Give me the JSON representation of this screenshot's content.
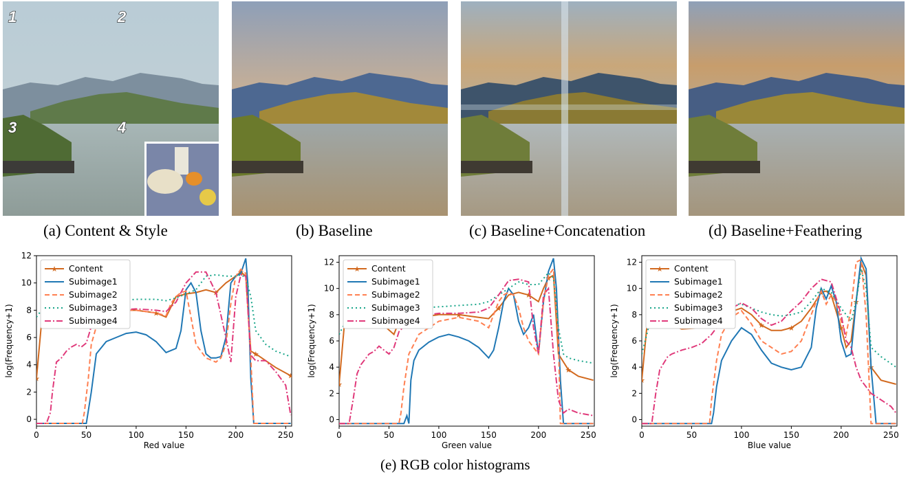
{
  "panels": [
    {
      "id": "a",
      "caption": "(a) Content & Style",
      "region_labels": [
        "1",
        "2",
        "3",
        "4"
      ]
    },
    {
      "id": "b",
      "caption": "(b) Baseline"
    },
    {
      "id": "c",
      "caption": "(c) Baseline+Concatenation"
    },
    {
      "id": "d",
      "caption": "(d) Baseline+Feathering"
    }
  ],
  "figure_caption": "(e) RGB color histograms",
  "colors": {
    "Content": "#d2691e",
    "Subimage1": "#1f77b4",
    "Subimage2": "#ff7f50",
    "Subimage3": "#17a589",
    "Subimage4": "#e0397a"
  },
  "chart_data": [
    {
      "type": "line",
      "xlabel": "Red value",
      "ylabel": "log(Frequency+1)",
      "xlim": [
        0,
        256
      ],
      "ylim": [
        -0.5,
        12
      ],
      "xticks": [
        0,
        50,
        100,
        150,
        200,
        250
      ],
      "yticks": [
        0,
        2,
        4,
        6,
        8,
        10,
        12
      ],
      "legend_position": "top-left",
      "series": [
        {
          "name": "Content",
          "x": [
            0,
            5,
            10,
            20,
            40,
            50,
            60,
            80,
            100,
            120,
            130,
            140,
            150,
            160,
            170,
            180,
            190,
            200,
            205,
            210,
            215,
            220,
            230,
            240,
            255
          ],
          "y": [
            3,
            7,
            8,
            8.2,
            8,
            7,
            7.8,
            8,
            8,
            7.8,
            7.5,
            9,
            9.2,
            9.3,
            9.5,
            9.3,
            10,
            10.5,
            10.8,
            10.5,
            5,
            4.8,
            4.3,
            3.8,
            3.2
          ]
        },
        {
          "name": "Subimage1",
          "x": [
            0,
            10,
            20,
            30,
            40,
            48,
            50,
            55,
            60,
            70,
            80,
            90,
            100,
            110,
            120,
            130,
            140,
            145,
            150,
            155,
            160,
            165,
            170,
            175,
            180,
            185,
            190,
            195,
            200,
            205,
            210,
            212,
            215,
            218,
            220,
            230,
            255
          ],
          "y": [
            -0.3,
            -0.3,
            -0.3,
            -0.3,
            -0.3,
            -0.3,
            -0.3,
            2,
            4.8,
            5.7,
            6,
            6.3,
            6.4,
            6.2,
            5.7,
            4.9,
            5.2,
            6.5,
            9.5,
            10,
            9.3,
            6.5,
            4.8,
            4.5,
            4.5,
            4.6,
            6,
            10,
            10.5,
            10.7,
            11.8,
            10,
            3,
            -0.3,
            -0.3,
            -0.3,
            -0.3
          ]
        },
        {
          "name": "Subimage2",
          "x": [
            0,
            10,
            20,
            30,
            40,
            46,
            48,
            52,
            55,
            60,
            70,
            80,
            100,
            120,
            130,
            135,
            140,
            145,
            150,
            155,
            160,
            170,
            180,
            185,
            190,
            195,
            200,
            205,
            210,
            215,
            218,
            220,
            255
          ],
          "y": [
            -0.3,
            -0.3,
            -0.3,
            -0.3,
            -0.3,
            -0.3,
            0.5,
            3,
            5.5,
            6.8,
            7.5,
            8,
            8,
            7.8,
            7.6,
            8.5,
            9,
            9.3,
            9.4,
            7.5,
            5.5,
            4.5,
            4.2,
            4.5,
            5.5,
            8.5,
            10.5,
            11,
            10.7,
            4.5,
            -0.3,
            -0.3,
            -0.3
          ]
        },
        {
          "name": "Subimage3",
          "x": [
            0,
            10,
            20,
            40,
            60,
            80,
            100,
            120,
            130,
            140,
            150,
            160,
            170,
            180,
            190,
            200,
            205,
            210,
            215,
            220,
            230,
            240,
            255
          ],
          "y": [
            7.5,
            8.5,
            8.6,
            8.5,
            8.6,
            8.7,
            8.8,
            8.8,
            8.7,
            8.9,
            9.2,
            9.5,
            10.5,
            10.6,
            10.5,
            10.5,
            10.6,
            10.4,
            9,
            6.5,
            5.5,
            5,
            4.6
          ]
        },
        {
          "name": "Subimage4",
          "x": [
            0,
            10,
            14,
            16,
            20,
            25,
            30,
            35,
            40,
            45,
            50,
            55,
            60,
            70,
            80,
            100,
            120,
            130,
            140,
            150,
            160,
            170,
            180,
            190,
            195,
            200,
            205,
            210,
            215,
            220,
            230,
            240,
            250,
            255
          ],
          "y": [
            -0.3,
            -0.3,
            0.5,
            2,
            4.2,
            4.5,
            5,
            5.3,
            5.5,
            5.3,
            5.6,
            6.8,
            7.5,
            7.8,
            8,
            8.1,
            8,
            7.9,
            8.6,
            10,
            10.8,
            10.8,
            9.3,
            6,
            4.2,
            9,
            10.6,
            10.5,
            4.7,
            4.3,
            4.3,
            3.5,
            2.5,
            0.3
          ]
        }
      ]
    },
    {
      "type": "line",
      "xlabel": "Green value",
      "ylabel": "log(Frequency+1)",
      "xlim": [
        0,
        256
      ],
      "ylim": [
        -0.5,
        12.5
      ],
      "xticks": [
        0,
        50,
        100,
        150,
        200,
        250
      ],
      "yticks": [
        0,
        2,
        4,
        6,
        8,
        10,
        12
      ],
      "legend_position": "top-left",
      "series": [
        {
          "name": "Content",
          "x": [
            0,
            5,
            10,
            20,
            40,
            55,
            60,
            80,
            100,
            120,
            140,
            150,
            160,
            170,
            180,
            190,
            200,
            205,
            210,
            215,
            220,
            230,
            240,
            255
          ],
          "y": [
            2.7,
            7,
            7.5,
            7.8,
            7.5,
            6.5,
            7.5,
            7.8,
            8,
            8,
            7.8,
            7.7,
            8.5,
            9.5,
            9.7,
            9.5,
            9,
            10,
            10.8,
            11,
            5,
            3.8,
            3.3,
            3
          ]
        },
        {
          "name": "Subimage1",
          "x": [
            0,
            20,
            40,
            60,
            65,
            68,
            70,
            72,
            75,
            80,
            90,
            100,
            110,
            120,
            130,
            140,
            150,
            155,
            160,
            165,
            170,
            175,
            180,
            185,
            190,
            195,
            200,
            205,
            210,
            215,
            218,
            222,
            225,
            230,
            255
          ],
          "y": [
            -0.3,
            -0.3,
            -0.3,
            -0.3,
            -0.3,
            0.3,
            -0.3,
            3,
            4.5,
            5.3,
            5.9,
            6.3,
            6.5,
            6.3,
            6,
            5.5,
            4.7,
            5.3,
            7,
            9,
            10,
            9.5,
            7.5,
            6.5,
            7,
            8,
            5,
            9,
            11.3,
            12.3,
            10,
            3,
            -0.3,
            -0.3,
            -0.3
          ]
        },
        {
          "name": "Subimage2",
          "x": [
            0,
            20,
            40,
            55,
            60,
            62,
            65,
            70,
            80,
            100,
            120,
            140,
            150,
            155,
            160,
            165,
            170,
            175,
            180,
            185,
            190,
            195,
            200,
            205,
            210,
            215,
            220,
            222,
            255
          ],
          "y": [
            -0.3,
            -0.3,
            -0.3,
            -0.3,
            -0.3,
            0.5,
            2.5,
            5,
            6.5,
            7.5,
            7.8,
            7.5,
            7,
            8,
            9,
            9.5,
            9.7,
            9.5,
            8.5,
            7,
            6,
            5.5,
            5,
            9,
            11,
            11.5,
            6,
            -0.3,
            -0.3
          ]
        },
        {
          "name": "Subimage3",
          "x": [
            0,
            10,
            20,
            40,
            60,
            80,
            100,
            120,
            140,
            150,
            160,
            170,
            180,
            190,
            200,
            210,
            215,
            220,
            225,
            230,
            240,
            255
          ],
          "y": [
            6.5,
            8,
            8.2,
            8.2,
            8.3,
            8.5,
            8.6,
            8.7,
            8.8,
            9,
            9.5,
            10,
            10.5,
            10.3,
            10.3,
            11.2,
            10.8,
            7,
            5,
            4.7,
            4.5,
            4.3
          ]
        },
        {
          "name": "Subimage4",
          "x": [
            0,
            10,
            14,
            18,
            22,
            26,
            30,
            35,
            40,
            45,
            50,
            55,
            60,
            70,
            80,
            100,
            120,
            140,
            150,
            160,
            170,
            180,
            190,
            195,
            200,
            205,
            210,
            215,
            220,
            225,
            230,
            240,
            255
          ],
          "y": [
            -0.3,
            -0.3,
            1.5,
            3.5,
            4.2,
            4.6,
            5,
            5.2,
            5.6,
            5.3,
            5,
            5.5,
            6.7,
            7.5,
            7.9,
            8.1,
            8.1,
            8.2,
            8.5,
            9.5,
            10.6,
            10.7,
            10.5,
            7,
            5,
            9.5,
            10,
            5,
            1.5,
            0.5,
            0.8,
            0.5,
            0.3
          ]
        }
      ]
    },
    {
      "type": "line",
      "xlabel": "Blue value",
      "ylabel": "log(Frequency+1)",
      "xlim": [
        0,
        256
      ],
      "ylim": [
        -0.5,
        12.5
      ],
      "xticks": [
        0,
        50,
        100,
        150,
        200,
        250
      ],
      "yticks": [
        0,
        2,
        4,
        6,
        8,
        10,
        12
      ],
      "legend_position": "top-left",
      "series": [
        {
          "name": "Content",
          "x": [
            0,
            5,
            10,
            20,
            40,
            60,
            80,
            100,
            110,
            120,
            130,
            140,
            150,
            160,
            170,
            180,
            185,
            190,
            200,
            205,
            210,
            215,
            220,
            225,
            230,
            240,
            255
          ],
          "y": [
            3,
            7,
            7.6,
            7.5,
            6.9,
            7,
            8,
            8.5,
            8,
            7.2,
            6.8,
            6.8,
            7,
            7.5,
            8.5,
            9.7,
            9.8,
            9.5,
            7,
            5.5,
            6,
            9,
            12,
            11,
            4,
            3,
            2.7
          ]
        },
        {
          "name": "Subimage1",
          "x": [
            0,
            20,
            40,
            60,
            65,
            70,
            72,
            75,
            80,
            90,
            100,
            110,
            120,
            130,
            140,
            150,
            160,
            170,
            175,
            180,
            185,
            190,
            195,
            200,
            205,
            210,
            215,
            220,
            225,
            230,
            235,
            255
          ],
          "y": [
            -0.3,
            -0.3,
            -0.3,
            -0.3,
            -0.3,
            -0.3,
            0.5,
            2.5,
            4.5,
            6,
            7,
            6.5,
            5.3,
            4.3,
            4,
            3.8,
            4,
            5.5,
            8.5,
            10,
            9.2,
            10.2,
            9,
            6,
            4.8,
            5,
            9,
            12.3,
            11.5,
            4,
            -0.3,
            -0.3
          ]
        },
        {
          "name": "Subimage2",
          "x": [
            0,
            20,
            40,
            60,
            65,
            68,
            70,
            75,
            80,
            90,
            100,
            110,
            120,
            130,
            140,
            150,
            160,
            170,
            175,
            180,
            185,
            190,
            195,
            200,
            205,
            210,
            215,
            220,
            225,
            230,
            255
          ],
          "y": [
            -0.3,
            -0.3,
            -0.3,
            -0.3,
            -0.3,
            -0.3,
            1.5,
            4.5,
            6.5,
            7.8,
            8.3,
            7.3,
            6,
            5.5,
            5,
            5.2,
            6,
            8,
            9,
            9.8,
            8.8,
            9.5,
            9,
            7.5,
            6.5,
            8.5,
            12,
            12.2,
            8,
            -0.3,
            -0.3
          ]
        },
        {
          "name": "Subimage3",
          "x": [
            0,
            10,
            20,
            40,
            60,
            80,
            90,
            100,
            110,
            120,
            130,
            140,
            150,
            160,
            170,
            180,
            190,
            200,
            210,
            215,
            220,
            225,
            230,
            240,
            255
          ],
          "y": [
            5,
            8,
            8.3,
            8.4,
            8.5,
            8.7,
            8.8,
            8.8,
            8.5,
            8.2,
            8,
            7.9,
            8,
            8.2,
            9,
            10,
            9.7,
            8.5,
            7.5,
            9,
            11.5,
            10,
            5.5,
            4.8,
            4
          ]
        },
        {
          "name": "Subimage4",
          "x": [
            0,
            10,
            14,
            18,
            22,
            26,
            30,
            40,
            50,
            60,
            70,
            80,
            90,
            100,
            110,
            120,
            130,
            140,
            150,
            160,
            170,
            180,
            190,
            200,
            205,
            210,
            215,
            220,
            225,
            230,
            240,
            250,
            255
          ],
          "y": [
            -0.3,
            -0.3,
            2,
            3.8,
            4.3,
            4.8,
            5,
            5.3,
            5.5,
            5.8,
            6.5,
            7.5,
            8.5,
            8.9,
            8.5,
            7.7,
            7.2,
            7.5,
            8.3,
            9,
            10,
            10.7,
            10.5,
            8,
            6,
            5.5,
            4,
            3,
            2.5,
            2,
            1.5,
            1,
            0.5
          ]
        }
      ]
    }
  ]
}
